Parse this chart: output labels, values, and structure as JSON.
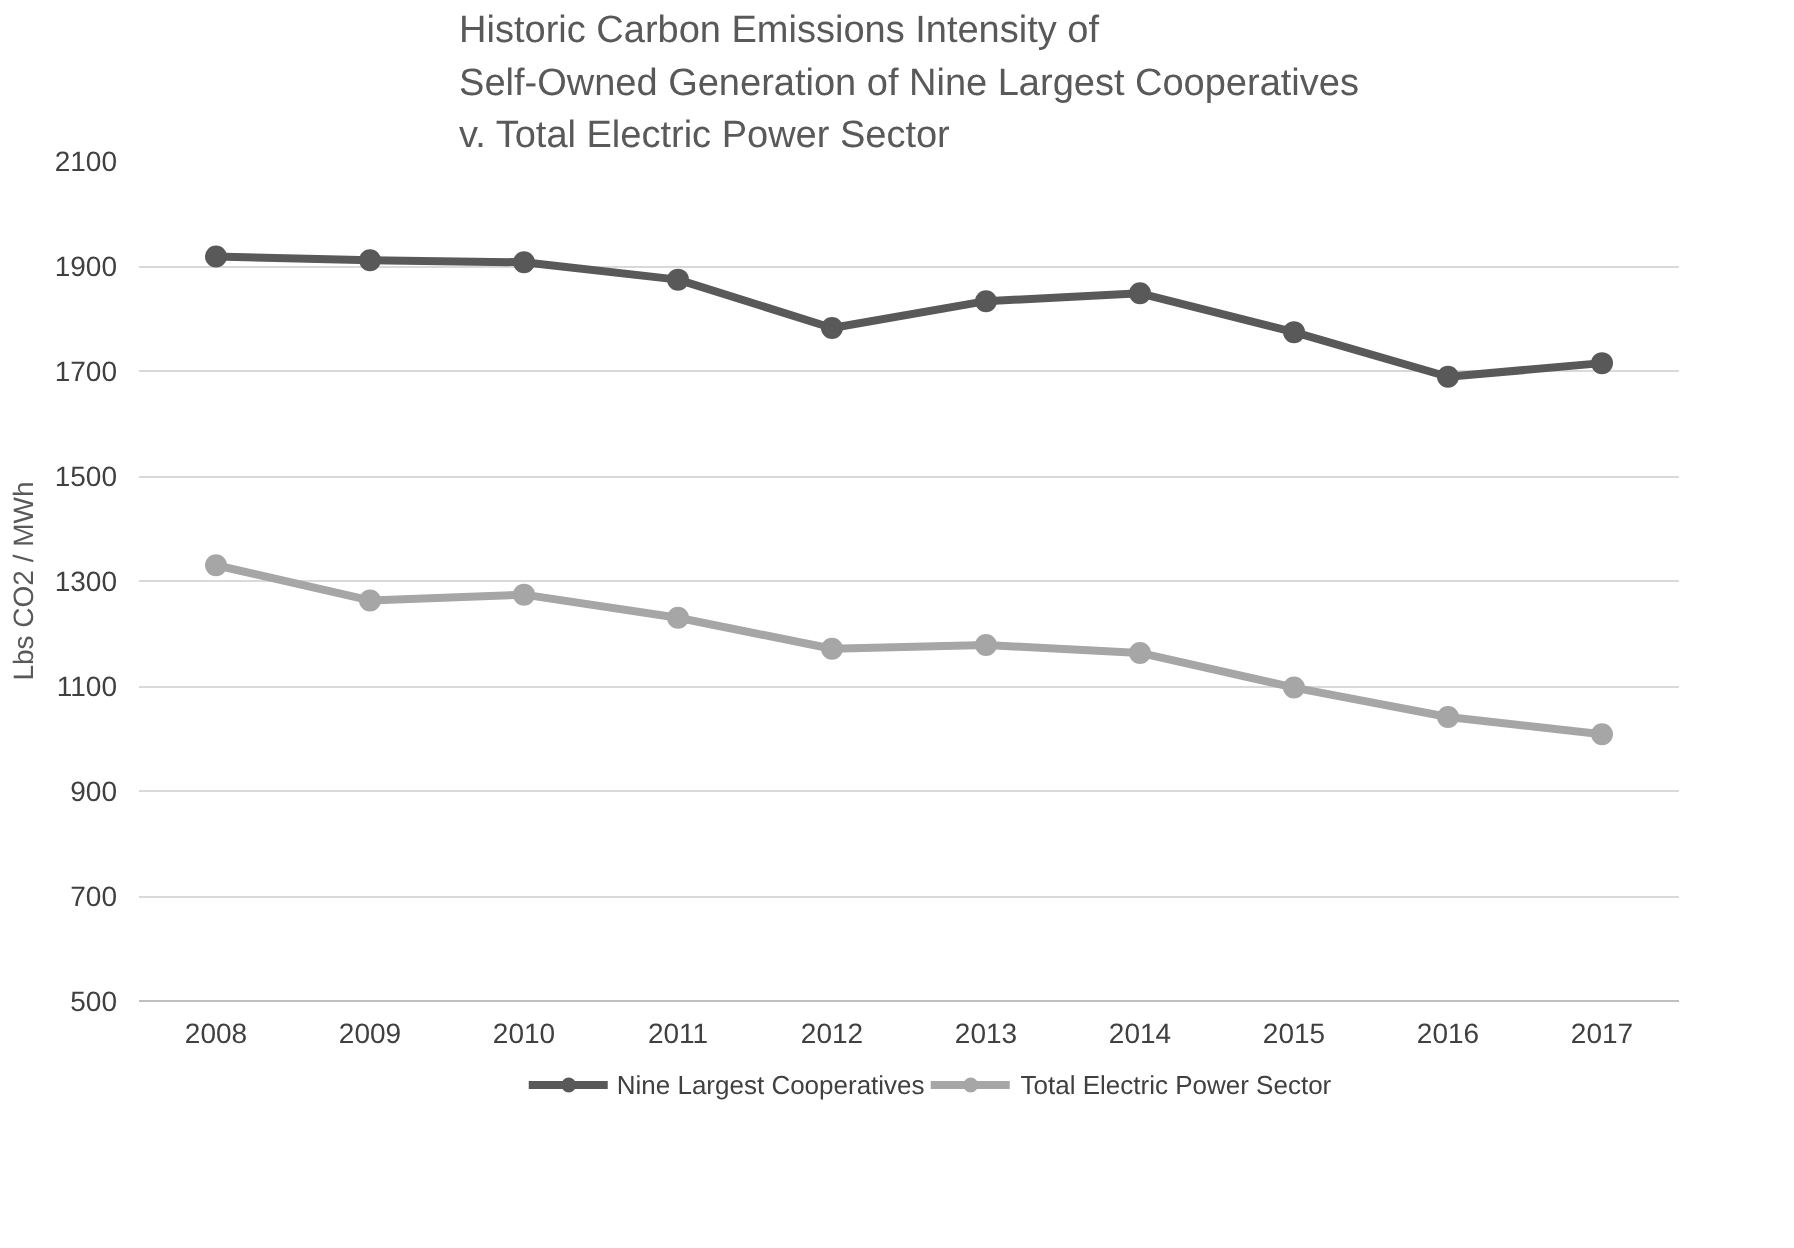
{
  "chart_data": {
    "type": "line",
    "title": "Historic Carbon Emissions Intensity of\nSelf-Owned Generation of Nine Largest Cooperatives\nv. Total Electric Power Sector",
    "ylabel": "Lbs CO2 / MWh",
    "categories": [
      "2008",
      "2009",
      "2010",
      "2011",
      "2012",
      "2013",
      "2014",
      "2015",
      "2016",
      "2017"
    ],
    "series": [
      {
        "name": "Nine Largest Cooperatives",
        "color": "#595959",
        "values": [
          1918,
          1911,
          1907,
          1874,
          1782,
          1833,
          1848,
          1774,
          1689,
          1715
        ]
      },
      {
        "name": "Total Electric Power Sector",
        "color": "#a6a6a6",
        "values": [
          1330,
          1263,
          1274,
          1230,
          1171,
          1178,
          1163,
          1097,
          1041,
          1008
        ]
      }
    ],
    "ylim": [
      500,
      2100
    ],
    "yticks": [
      500,
      700,
      900,
      1100,
      1300,
      1500,
      1700,
      1900,
      2100
    ],
    "grid": "y",
    "legend": "bottom",
    "marker": "circle",
    "line_style": "solid"
  }
}
